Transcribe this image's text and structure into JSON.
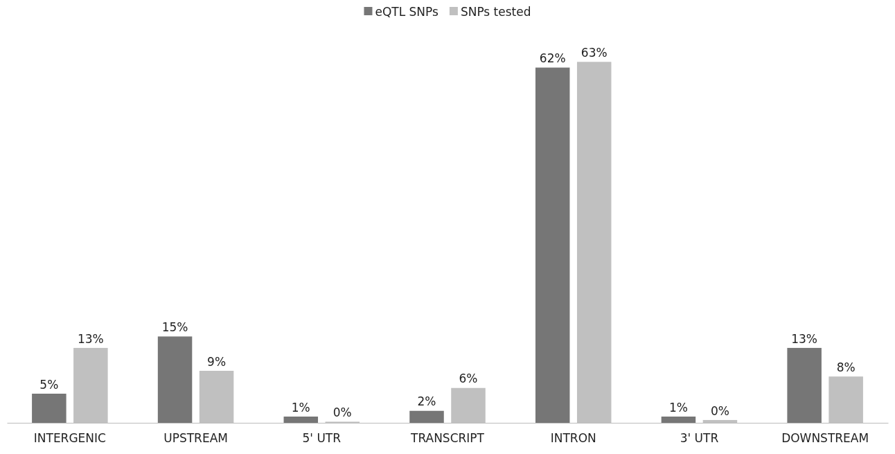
{
  "chart_data": {
    "type": "bar",
    "categories": [
      "INTERGENIC",
      "UPSTREAM",
      "5' UTR",
      "TRANSCRIPT",
      "INTRON",
      "3' UTR",
      "DOWNSTREAM"
    ],
    "series": [
      {
        "name": "eQTL SNPs",
        "color": "#767676",
        "values": [
          5,
          15,
          1,
          2,
          62,
          1,
          13
        ],
        "value_labels": [
          "5%",
          "15%",
          "1%",
          "2%",
          "62%",
          "1%",
          "13%"
        ]
      },
      {
        "name": "SNPs tested",
        "color": "#c0c0c0",
        "values": [
          13,
          9,
          0.1,
          6,
          63,
          0.4,
          8
        ],
        "value_labels": [
          "13%",
          "9%",
          "0%",
          "6%",
          "63%",
          "0%",
          "8%"
        ]
      }
    ],
    "legend": "top"
  }
}
